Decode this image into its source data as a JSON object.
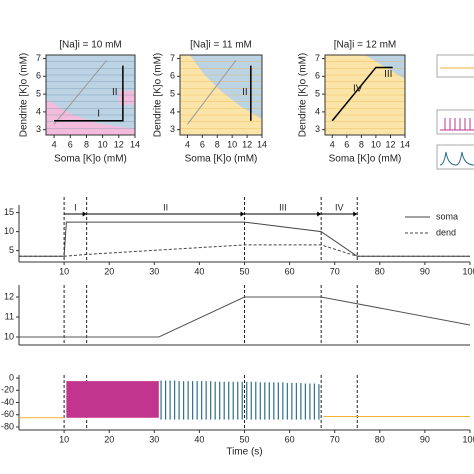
{
  "chart_data": [
    {
      "type": "line",
      "title": "[Na]i = 10 mM",
      "xlabel": "Soma [K]o (mM)",
      "ylabel": "Dendrite [K]o (mM)",
      "xlim": [
        3,
        14
      ],
      "ylim": [
        2.7,
        7.2
      ],
      "xticks": [
        4,
        6,
        8,
        10,
        12,
        14
      ],
      "yticks": [
        3,
        4,
        5,
        6,
        7
      ],
      "series": [
        {
          "color": "#999999",
          "x": [
            4,
            10.5
          ],
          "values": [
            3.3,
            6.9
          ]
        },
        {
          "color": "#000000",
          "x": [
            4,
            12.5,
            12.5
          ],
          "values": [
            3.5,
            3.5,
            6.6
          ]
        }
      ],
      "annotations": [
        {
          "text": "I",
          "x": 9.5,
          "y": 3.9
        },
        {
          "text": "II",
          "x": 11.5,
          "y": 5.1
        }
      ]
    },
    {
      "type": "line",
      "title": "[Na]i = 11 mM",
      "xlabel": "Soma [K]o (mM)",
      "ylabel": "Dendrite [K]o (mM)",
      "xlim": [
        3,
        14
      ],
      "ylim": [
        2.7,
        7.2
      ],
      "xticks": [
        4,
        6,
        8,
        10,
        12,
        14
      ],
      "yticks": [
        3,
        4,
        5,
        6,
        7
      ],
      "series": [
        {
          "color": "#999999",
          "x": [
            4,
            10.5
          ],
          "values": [
            3.3,
            6.9
          ]
        },
        {
          "color": "#000000",
          "x": [
            12.5,
            12.5
          ],
          "values": [
            3.5,
            6.6
          ]
        }
      ],
      "annotations": [
        {
          "text": "II",
          "x": 11.7,
          "y": 5.1
        }
      ]
    },
    {
      "type": "line",
      "title": "[Na]i = 12 mM",
      "xlabel": "Soma [K]o (mM)",
      "ylabel": "Dendrite [K]o (mM)",
      "xlim": [
        3,
        14
      ],
      "ylim": [
        2.7,
        7.2
      ],
      "xticks": [
        4,
        6,
        8,
        10,
        12,
        14
      ],
      "yticks": [
        3,
        4,
        5,
        6,
        7
      ],
      "series": [
        {
          "color": "#000000",
          "x": [
            4,
            10,
            12.3
          ],
          "values": [
            3.5,
            6.5,
            6.5
          ]
        }
      ],
      "annotations": [
        {
          "text": "IV",
          "x": 7.5,
          "y": 5.3
        },
        {
          "text": "III",
          "x": 11.7,
          "y": 6.1
        }
      ]
    },
    {
      "type": "line",
      "xlim": [
        0,
        100
      ],
      "ylim": [
        2,
        17
      ],
      "xticks": [
        10,
        20,
        30,
        40,
        50,
        60,
        70,
        80,
        90,
        100
      ],
      "yticks": [
        5,
        10,
        15
      ],
      "vlines": [
        10,
        15,
        50,
        67,
        75
      ],
      "phases": [
        {
          "label": "I",
          "start": 10,
          "end": 15
        },
        {
          "label": "II",
          "start": 15,
          "end": 50
        },
        {
          "label": "III",
          "start": 50,
          "end": 67
        },
        {
          "label": "IV",
          "start": 67,
          "end": 75
        }
      ],
      "series": [
        {
          "name": "soma",
          "color": "#444444",
          "x": [
            0,
            10,
            10.5,
            50,
            67,
            75,
            100
          ],
          "values": [
            3.5,
            3.5,
            12.5,
            12.5,
            10,
            3.5,
            3.5
          ]
        },
        {
          "name": "dend",
          "color": "#444444",
          "dash": true,
          "x": [
            0,
            10,
            15,
            50,
            67,
            75,
            100
          ],
          "values": [
            3.5,
            3.5,
            4,
            6.5,
            6.5,
            3.5,
            3.5
          ]
        }
      ]
    },
    {
      "type": "line",
      "xlim": [
        0,
        100
      ],
      "ylim": [
        9.6,
        12.6
      ],
      "yticks": [
        10,
        11,
        12
      ],
      "vlines": [
        10,
        15,
        50,
        67,
        75
      ],
      "series": [
        {
          "color": "#555555",
          "x": [
            0,
            31,
            50,
            67,
            100
          ],
          "values": [
            10,
            10,
            12,
            12,
            10.6
          ]
        }
      ]
    },
    {
      "type": "line",
      "xlabel": "Time (s)",
      "xlim": [
        0,
        100
      ],
      "ylim": [
        -85,
        5
      ],
      "xticks": [
        10,
        20,
        30,
        40,
        50,
        60,
        70,
        80,
        90,
        100
      ],
      "yticks": [
        -80,
        -60,
        -40,
        -20,
        0
      ],
      "vlines": [
        10,
        15,
        50,
        67,
        75
      ],
      "series": [
        {
          "color": "#f0b030",
          "x": [
            0,
            10,
            null,
            67.5,
            100
          ],
          "values": [
            -65,
            -65,
            null,
            -63,
            -63
          ]
        },
        {
          "color": "#c2358f",
          "type": "band",
          "x": [
            10.5,
            31
          ],
          "values": [
            -5,
            -5
          ],
          "low": [
            -65,
            -65
          ]
        },
        {
          "color": "#2e6f8a",
          "type": "spikes",
          "low": -68,
          "x": [
            31.5,
            32.5,
            33.5,
            34.5,
            35.5,
            36.5,
            37.5,
            38.5,
            39.5,
            40.5,
            41.5,
            42.5,
            43.5,
            44.5,
            45.5,
            46.5,
            47.5,
            48.5,
            49.5,
            50.5,
            51.5,
            52.5,
            53.5,
            54.5,
            55.5,
            56.5,
            57.5,
            58.5,
            59.5,
            60.5,
            61.5,
            62.5,
            63.5,
            64.5,
            65.5,
            66.5
          ],
          "values": [
            -4,
            -4,
            -4,
            -4,
            -5,
            -5,
            -5,
            -5,
            -5,
            -5,
            -5,
            -5,
            -6,
            -6,
            -6,
            -6,
            -6,
            -6,
            -6,
            -6,
            -6,
            -6,
            -7,
            -7,
            -7,
            -7,
            -7,
            -7,
            -8,
            -8,
            -8,
            -8,
            -9,
            -9,
            -9,
            -10
          ]
        }
      ]
    }
  ]
}
